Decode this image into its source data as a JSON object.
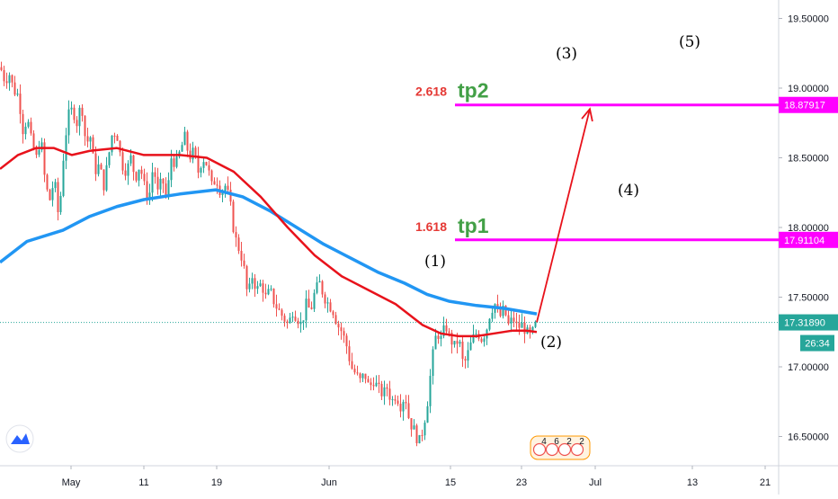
{
  "chart_data": {
    "type": "candlestick",
    "colors": {
      "up": "#26a69a",
      "down": "#ef5350",
      "ma_fast": "#e8121b",
      "ma_slow": "#2196f3",
      "fib_line": "#ff00ff",
      "fib_ratio": "#e53935",
      "tp": "#43a047",
      "projection": "#e8121b",
      "current_price_line": "#26a69a",
      "axis_text": "#131722"
    },
    "y_axis": {
      "min": 16.2,
      "max": 19.6,
      "ticks": [
        "16.50000",
        "17.00000",
        "17.50000",
        "18.00000",
        "18.50000",
        "19.00000",
        "19.50000"
      ]
    },
    "x_axis": {
      "ticks": [
        "May",
        "11",
        "19",
        "Jun",
        "15",
        "23",
        "Jul",
        "13",
        "21"
      ]
    },
    "ohlc_path": [
      [
        0,
        19.15
      ],
      [
        5,
        19.05
      ],
      [
        10,
        19.1
      ],
      [
        15,
        18.98
      ],
      [
        20,
        18.95
      ],
      [
        25,
        18.7
      ],
      [
        30,
        18.78
      ],
      [
        35,
        18.6
      ],
      [
        40,
        18.5
      ],
      [
        45,
        18.65
      ],
      [
        50,
        18.3
      ],
      [
        55,
        18.2
      ],
      [
        60,
        18.35
      ],
      [
        65,
        18.05
      ],
      [
        70,
        18.5
      ],
      [
        75,
        18.8
      ],
      [
        80,
        18.85
      ],
      [
        85,
        18.75
      ],
      [
        90,
        18.9
      ],
      [
        95,
        18.6
      ],
      [
        100,
        18.65
      ],
      [
        105,
        18.4
      ],
      [
        110,
        18.45
      ],
      [
        115,
        18.3
      ],
      [
        120,
        18.5
      ],
      [
        125,
        18.7
      ],
      [
        130,
        18.65
      ],
      [
        135,
        18.45
      ],
      [
        140,
        18.4
      ],
      [
        145,
        18.5
      ],
      [
        150,
        18.35
      ],
      [
        155,
        18.45
      ],
      [
        160,
        18.3
      ],
      [
        165,
        18.2
      ],
      [
        170,
        18.45
      ],
      [
        175,
        18.25
      ],
      [
        180,
        18.35
      ],
      [
        185,
        18.2
      ],
      [
        190,
        18.5
      ],
      [
        195,
        18.45
      ],
      [
        200,
        18.55
      ],
      [
        205,
        18.65
      ],
      [
        210,
        18.5
      ],
      [
        215,
        18.55
      ],
      [
        220,
        18.4
      ],
      [
        225,
        18.5
      ],
      [
        230,
        18.45
      ],
      [
        235,
        18.3
      ],
      [
        240,
        18.35
      ],
      [
        245,
        18.25
      ],
      [
        250,
        18.3
      ],
      [
        255,
        18.2
      ],
      [
        260,
        17.95
      ],
      [
        265,
        17.85
      ],
      [
        270,
        17.75
      ],
      [
        275,
        17.5
      ],
      [
        280,
        17.65
      ],
      [
        285,
        17.55
      ],
      [
        290,
        17.6
      ],
      [
        295,
        17.5
      ],
      [
        300,
        17.55
      ],
      [
        305,
        17.45
      ],
      [
        310,
        17.4
      ],
      [
        315,
        17.35
      ],
      [
        320,
        17.3
      ],
      [
        325,
        17.4
      ],
      [
        330,
        17.35
      ],
      [
        335,
        17.3
      ],
      [
        340,
        17.45
      ],
      [
        345,
        17.4
      ],
      [
        350,
        17.55
      ],
      [
        355,
        17.6
      ],
      [
        360,
        17.5
      ],
      [
        365,
        17.45
      ],
      [
        370,
        17.4
      ],
      [
        375,
        17.3
      ],
      [
        380,
        17.25
      ],
      [
        385,
        17.15
      ],
      [
        390,
        17.0
      ],
      [
        395,
        16.95
      ],
      [
        400,
        16.9
      ],
      [
        405,
        16.95
      ],
      [
        410,
        16.85
      ],
      [
        415,
        16.9
      ],
      [
        420,
        16.85
      ],
      [
        425,
        16.8
      ],
      [
        430,
        16.85
      ],
      [
        435,
        16.75
      ],
      [
        440,
        16.8
      ],
      [
        445,
        16.72
      ],
      [
        450,
        16.8
      ],
      [
        455,
        16.6
      ],
      [
        460,
        16.55
      ],
      [
        465,
        16.45
      ],
      [
        470,
        16.55
      ],
      [
        475,
        16.75
      ],
      [
        480,
        17.05
      ],
      [
        485,
        17.25
      ],
      [
        490,
        17.2
      ],
      [
        495,
        17.3
      ],
      [
        500,
        17.2
      ],
      [
        505,
        17.15
      ],
      [
        510,
        17.2
      ],
      [
        515,
        17.0
      ],
      [
        520,
        17.1
      ],
      [
        525,
        17.2
      ],
      [
        530,
        17.25
      ],
      [
        535,
        17.2
      ],
      [
        540,
        17.25
      ],
      [
        545,
        17.4
      ],
      [
        550,
        17.45
      ],
      [
        555,
        17.35
      ],
      [
        560,
        17.42
      ],
      [
        565,
        17.3
      ],
      [
        570,
        17.35
      ],
      [
        575,
        17.28
      ],
      [
        580,
        17.3
      ],
      [
        585,
        17.25
      ],
      [
        590,
        17.22
      ],
      [
        595,
        17.3
      ]
    ],
    "ma_fast_path": [
      [
        0,
        18.42
      ],
      [
        20,
        18.52
      ],
      [
        40,
        18.57
      ],
      [
        60,
        18.57
      ],
      [
        80,
        18.52
      ],
      [
        100,
        18.55
      ],
      [
        130,
        18.57
      ],
      [
        160,
        18.52
      ],
      [
        200,
        18.52
      ],
      [
        230,
        18.5
      ],
      [
        260,
        18.4
      ],
      [
        290,
        18.22
      ],
      [
        320,
        18.0
      ],
      [
        350,
        17.8
      ],
      [
        380,
        17.65
      ],
      [
        410,
        17.55
      ],
      [
        440,
        17.45
      ],
      [
        470,
        17.3
      ],
      [
        490,
        17.24
      ],
      [
        510,
        17.22
      ],
      [
        530,
        17.22
      ],
      [
        550,
        17.24
      ],
      [
        570,
        17.26
      ],
      [
        585,
        17.26
      ],
      [
        597,
        17.25
      ]
    ],
    "ma_slow_path": [
      [
        0,
        17.75
      ],
      [
        30,
        17.9
      ],
      [
        70,
        17.98
      ],
      [
        100,
        18.08
      ],
      [
        130,
        18.15
      ],
      [
        160,
        18.2
      ],
      [
        200,
        18.24
      ],
      [
        240,
        18.27
      ],
      [
        270,
        18.22
      ],
      [
        300,
        18.12
      ],
      [
        330,
        18.0
      ],
      [
        360,
        17.88
      ],
      [
        390,
        17.78
      ],
      [
        420,
        17.68
      ],
      [
        450,
        17.6
      ],
      [
        475,
        17.52
      ],
      [
        500,
        17.47
      ],
      [
        530,
        17.44
      ],
      [
        560,
        17.42
      ],
      [
        597,
        17.38
      ]
    ],
    "current_price": {
      "label": "17.31890",
      "value": 17.3189
    },
    "countdown": "26:34",
    "fib_levels": [
      {
        "ratio": "2.618",
        "tp": "tp2",
        "price_label": "18.87917",
        "value": 18.87917
      },
      {
        "ratio": "1.618",
        "tp": "tp1",
        "price_label": "17.91104",
        "value": 17.91104
      }
    ],
    "projection": {
      "from": [
        597,
        17.32
      ],
      "to": [
        656,
        18.85
      ]
    },
    "wave_labels": [
      "(1)",
      "(2)",
      "(3)",
      "(4)",
      "(5)"
    ],
    "calendar_badge": [
      "4",
      "6",
      "2",
      "2"
    ]
  }
}
